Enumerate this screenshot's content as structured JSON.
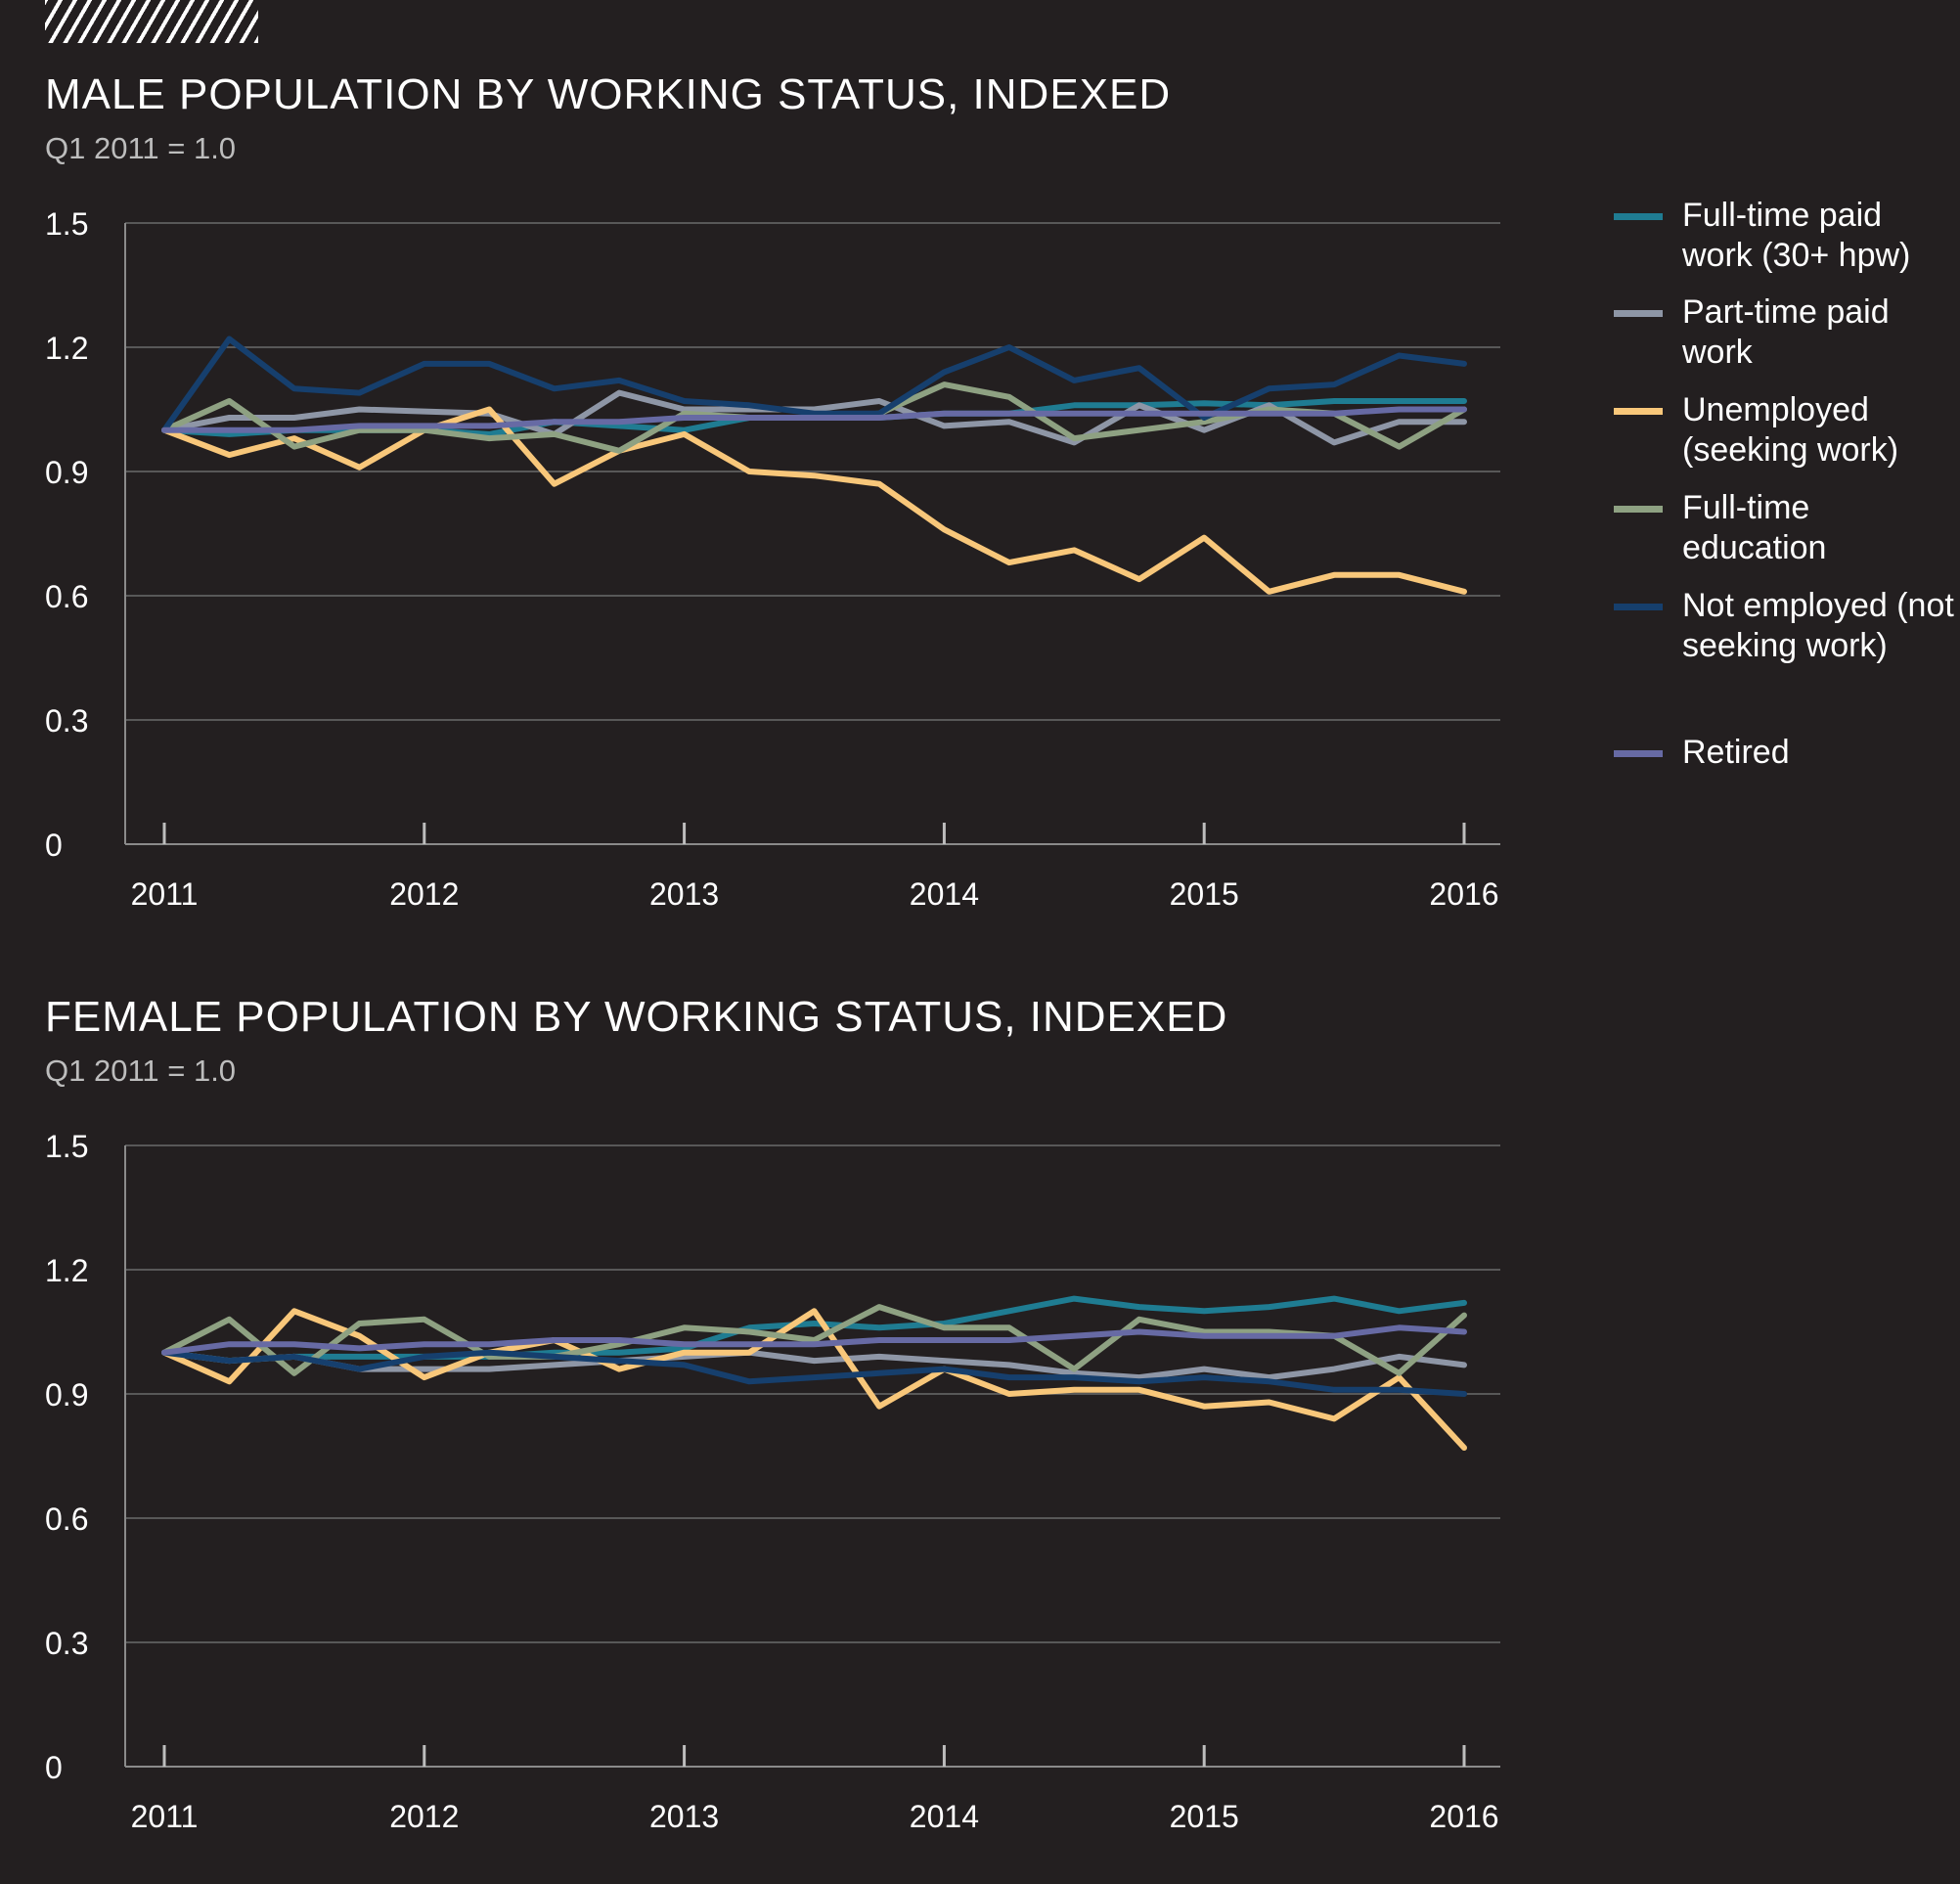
{
  "series_meta": [
    {
      "key": "ft",
      "label": "Full-time paid work (30+ hpw)",
      "color": "#1f7c92"
    },
    {
      "key": "pt",
      "label": "Part-time paid work",
      "color": "#8e96a6"
    },
    {
      "key": "un",
      "label": "Unemployed (seeking work)",
      "color": "#f8c77a"
    },
    {
      "key": "ed",
      "label": "Full-time education",
      "color": "#8ea182"
    },
    {
      "key": "ne",
      "label": "Not employed (not seeking work)",
      "color": "#163f6d"
    },
    {
      "key": "re",
      "label": "Retired",
      "color": "#676aa4"
    }
  ],
  "chart_data": [
    {
      "type": "line",
      "title": "MALE POPULATION BY WORKING STATUS, INDEXED",
      "subtitle": "Q1 2011 = 1.0",
      "x_tick_labels": [
        "2011",
        "2012",
        "2013",
        "2014",
        "2015",
        "2016"
      ],
      "y_tick_labels": [
        "0",
        "0.3",
        "0.6",
        "0.9",
        "1.2",
        "1.5"
      ],
      "ylim": [
        0,
        1.5
      ],
      "grid": true,
      "legend": "right",
      "x": [
        2011.0,
        2011.25,
        2011.5,
        2011.75,
        2012.0,
        2012.25,
        2012.5,
        2012.75,
        2013.0,
        2013.25,
        2013.5,
        2013.75,
        2014.0,
        2014.25,
        2014.5,
        2014.75,
        2015.0,
        2015.25,
        2015.5,
        2015.75,
        2016.0
      ],
      "series": [
        {
          "name": "Full-time paid work (30+ hpw)",
          "values": [
            1.0,
            0.99,
            1.0,
            1.0,
            1.0,
            0.99,
            1.02,
            1.01,
            1.0,
            1.03,
            1.03,
            1.03,
            1.04,
            1.04,
            1.06,
            1.06,
            1.065,
            1.06,
            1.07,
            1.07,
            1.07
          ]
        },
        {
          "name": "Part-time paid work",
          "values": [
            1.0,
            1.03,
            1.03,
            1.05,
            1.045,
            1.04,
            0.99,
            1.09,
            1.05,
            1.05,
            1.05,
            1.07,
            1.01,
            1.02,
            0.97,
            1.06,
            1.0,
            1.06,
            0.97,
            1.02,
            1.02
          ]
        },
        {
          "name": "Unemployed (seeking work)",
          "values": [
            1.0,
            0.94,
            0.98,
            0.91,
            1.0,
            1.05,
            0.87,
            0.95,
            0.99,
            0.9,
            0.89,
            0.87,
            0.76,
            0.68,
            0.71,
            0.64,
            0.74,
            0.61,
            0.65,
            0.65,
            0.61
          ]
        },
        {
          "name": "Full-time education",
          "values": [
            1.0,
            1.07,
            0.96,
            1.0,
            1.0,
            0.98,
            0.99,
            0.95,
            1.04,
            1.03,
            1.03,
            1.04,
            1.11,
            1.08,
            0.98,
            1.0,
            1.02,
            1.05,
            1.04,
            0.96,
            1.05
          ]
        },
        {
          "name": "Not employed (not seeking work)",
          "values": [
            1.0,
            1.22,
            1.1,
            1.09,
            1.16,
            1.16,
            1.1,
            1.12,
            1.07,
            1.06,
            1.04,
            1.04,
            1.14,
            1.2,
            1.12,
            1.15,
            1.03,
            1.1,
            1.11,
            1.18,
            1.16
          ]
        },
        {
          "name": "Retired",
          "values": [
            1.0,
            1.0,
            1.0,
            1.01,
            1.01,
            1.01,
            1.02,
            1.02,
            1.03,
            1.03,
            1.03,
            1.03,
            1.04,
            1.04,
            1.04,
            1.04,
            1.04,
            1.04,
            1.04,
            1.05,
            1.05
          ]
        }
      ]
    },
    {
      "type": "line",
      "title": "FEMALE POPULATION BY WORKING STATUS, INDEXED",
      "subtitle": "Q1 2011 = 1.0",
      "x_tick_labels": [
        "2011",
        "2012",
        "2013",
        "2014",
        "2015",
        "2016"
      ],
      "y_tick_labels": [
        "0",
        "0.3",
        "0.6",
        "0.9",
        "1.2",
        "1.5"
      ],
      "ylim": [
        0,
        1.5
      ],
      "grid": true,
      "legend": "right",
      "x": [
        2011.0,
        2011.25,
        2011.5,
        2011.75,
        2012.0,
        2012.25,
        2012.5,
        2012.75,
        2013.0,
        2013.25,
        2013.5,
        2013.75,
        2014.0,
        2014.25,
        2014.5,
        2014.75,
        2015.0,
        2015.25,
        2015.5,
        2015.75,
        2016.0
      ],
      "series": [
        {
          "name": "Full-time paid work (30+ hpw)",
          "values": [
            1.0,
            0.98,
            0.99,
            0.99,
            0.99,
            0.99,
            1.0,
            1.0,
            1.01,
            1.06,
            1.07,
            1.06,
            1.07,
            1.1,
            1.13,
            1.11,
            1.1,
            1.11,
            1.13,
            1.1,
            1.12
          ]
        },
        {
          "name": "Part-time paid work",
          "values": [
            1.0,
            0.98,
            0.99,
            0.96,
            0.96,
            0.96,
            0.97,
            0.98,
            0.99,
            1.0,
            0.98,
            0.99,
            0.98,
            0.97,
            0.95,
            0.94,
            0.96,
            0.94,
            0.96,
            0.99,
            0.97
          ]
        },
        {
          "name": "Unemployed (seeking work)",
          "values": [
            1.0,
            0.93,
            1.1,
            1.04,
            0.94,
            1.0,
            1.03,
            0.96,
            1.0,
            1.0,
            1.1,
            0.87,
            0.96,
            0.9,
            0.91,
            0.91,
            0.87,
            0.88,
            0.84,
            0.94,
            0.77
          ]
        },
        {
          "name": "Full-time education",
          "values": [
            1.0,
            1.08,
            0.95,
            1.07,
            1.08,
            0.99,
            0.99,
            1.02,
            1.06,
            1.05,
            1.03,
            1.11,
            1.06,
            1.06,
            0.96,
            1.08,
            1.05,
            1.05,
            1.04,
            0.95,
            1.09
          ]
        },
        {
          "name": "Not employed (not seeking work)",
          "values": [
            1.0,
            0.98,
            0.99,
            0.96,
            0.99,
            1.0,
            0.99,
            0.98,
            0.97,
            0.93,
            0.94,
            0.95,
            0.96,
            0.94,
            0.94,
            0.93,
            0.94,
            0.93,
            0.91,
            0.91,
            0.9
          ]
        },
        {
          "name": "Retired",
          "values": [
            1.0,
            1.02,
            1.02,
            1.01,
            1.02,
            1.02,
            1.03,
            1.03,
            1.02,
            1.02,
            1.02,
            1.03,
            1.03,
            1.03,
            1.04,
            1.05,
            1.04,
            1.04,
            1.04,
            1.06,
            1.05
          ]
        }
      ]
    }
  ]
}
